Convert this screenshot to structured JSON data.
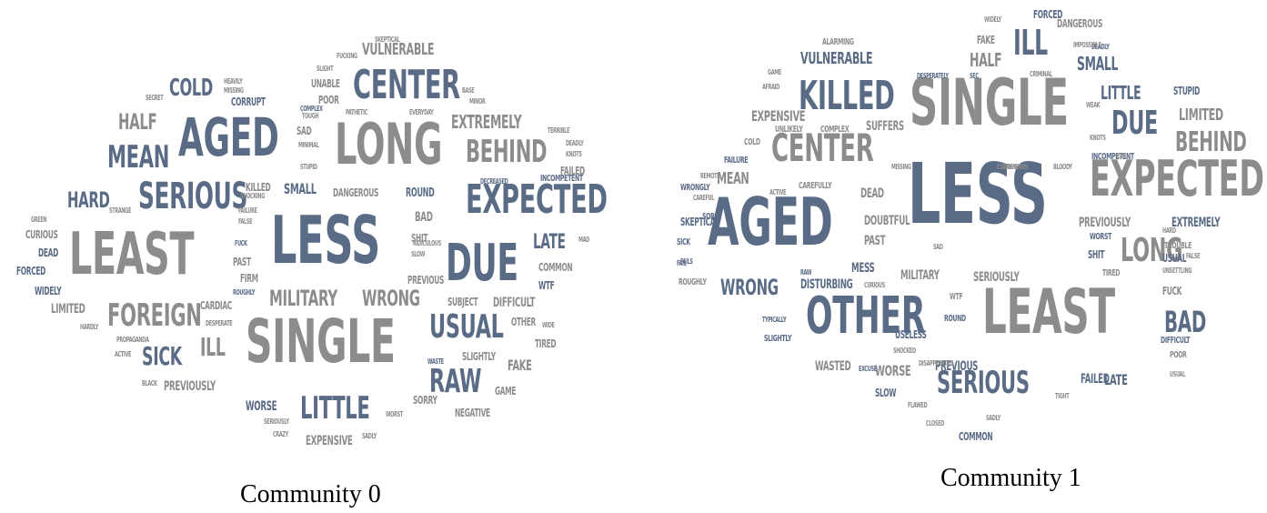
{
  "palette": {
    "gray": "#8c8c8c",
    "blue": "#5a6b86"
  },
  "clouds": [
    {
      "caption": "Community 0",
      "words": [
        {
          "t": "LESS",
          "c": "b"
        },
        {
          "t": "LEAST",
          "c": "g"
        },
        {
          "t": "SINGLE",
          "c": "g"
        },
        {
          "t": "LONG",
          "c": "g"
        },
        {
          "t": "AGED",
          "c": "b"
        },
        {
          "t": "DUE",
          "c": "b"
        },
        {
          "t": "EXPECTED",
          "c": "b"
        },
        {
          "t": "CENTER",
          "c": "b"
        },
        {
          "t": "SERIOUS",
          "c": "b"
        },
        {
          "t": "FOREIGN",
          "c": "g"
        },
        {
          "t": "MEAN",
          "c": "b"
        },
        {
          "t": "BEHIND",
          "c": "g"
        },
        {
          "t": "USUAL",
          "c": "b"
        },
        {
          "t": "RAW",
          "c": "b"
        },
        {
          "t": "LITTLE",
          "c": "b"
        },
        {
          "t": "MILITARY",
          "c": "g"
        },
        {
          "t": "WRONG",
          "c": "g"
        },
        {
          "t": "EXTREMELY",
          "c": "g"
        },
        {
          "t": "COLD",
          "c": "b"
        },
        {
          "t": "HALF",
          "c": "g"
        },
        {
          "t": "HARD",
          "c": "b"
        },
        {
          "t": "SICK",
          "c": "b"
        },
        {
          "t": "ILL",
          "c": "g"
        },
        {
          "t": "LATE",
          "c": "b"
        },
        {
          "t": "VULNERABLE",
          "c": "g"
        },
        {
          "t": "FAKE",
          "c": "g"
        },
        {
          "t": "PREVIOUSLY",
          "c": "g"
        },
        {
          "t": "LIMITED",
          "c": "g"
        },
        {
          "t": "DIFFICULT",
          "c": "g"
        },
        {
          "t": "SMALL",
          "c": "b"
        },
        {
          "t": "ROUND",
          "c": "b"
        },
        {
          "t": "BAD",
          "c": "g"
        },
        {
          "t": "EXPENSIVE",
          "c": "g"
        },
        {
          "t": "WORSE",
          "c": "b"
        },
        {
          "t": "SHIT",
          "c": "g"
        },
        {
          "t": "POOR",
          "c": "g"
        },
        {
          "t": "CORRUPT",
          "c": "b"
        },
        {
          "t": "UNABLE",
          "c": "g"
        },
        {
          "t": "SAD",
          "c": "g"
        },
        {
          "t": "CARDIAC",
          "c": "g"
        },
        {
          "t": "DANGEROUS",
          "c": "g"
        },
        {
          "t": "COMMON",
          "c": "g"
        },
        {
          "t": "PREVIOUS",
          "c": "g"
        },
        {
          "t": "SUBJECT",
          "c": "g"
        },
        {
          "t": "NEGATIVE",
          "c": "g"
        },
        {
          "t": "SLIGHTLY",
          "c": "g"
        },
        {
          "t": "TIRED",
          "c": "g"
        },
        {
          "t": "OTHER",
          "c": "g"
        },
        {
          "t": "SORRY",
          "c": "g"
        },
        {
          "t": "GAME",
          "c": "g"
        },
        {
          "t": "CURIOUS",
          "c": "g"
        },
        {
          "t": "DEAD",
          "c": "b"
        },
        {
          "t": "FORCED",
          "c": "b"
        },
        {
          "t": "WIDELY",
          "c": "b"
        },
        {
          "t": "KILLED",
          "c": "g"
        },
        {
          "t": "FIRM",
          "c": "g"
        },
        {
          "t": "PAST",
          "c": "g"
        },
        {
          "t": "FAILED",
          "c": "g"
        },
        {
          "t": "WTF",
          "c": "b"
        },
        {
          "t": "INCOMPETENT",
          "c": "b"
        },
        {
          "t": "DEADLY",
          "c": "g"
        },
        {
          "t": "KNOTS",
          "c": "g"
        },
        {
          "t": "TERRIBLE",
          "c": "g"
        },
        {
          "t": "WORST",
          "c": "g"
        },
        {
          "t": "SADLY",
          "c": "g"
        },
        {
          "t": "CRAZY",
          "c": "g"
        },
        {
          "t": "SERIOUSLY",
          "c": "g"
        },
        {
          "t": "PATHETIC",
          "c": "g"
        },
        {
          "t": "EVERYDAY",
          "c": "g"
        },
        {
          "t": "COMPLEX",
          "c": "b"
        },
        {
          "t": "TOUGH",
          "c": "g"
        },
        {
          "t": "MINIMAL",
          "c": "g"
        },
        {
          "t": "STUPID",
          "c": "g"
        },
        {
          "t": "FUCK",
          "c": "b"
        },
        {
          "t": "SKEPTICAL",
          "c": "g"
        },
        {
          "t": "SLIGHT",
          "c": "g"
        },
        {
          "t": "FUCKING",
          "c": "g"
        },
        {
          "t": "HEAVILY",
          "c": "g"
        },
        {
          "t": "MISSING",
          "c": "g"
        },
        {
          "t": "SECRET",
          "c": "g"
        },
        {
          "t": "BASE",
          "c": "g"
        },
        {
          "t": "MINOR",
          "c": "g"
        },
        {
          "t": "DECREASED",
          "c": "b"
        },
        {
          "t": "SLOW",
          "c": "g"
        },
        {
          "t": "RIDICULOUS",
          "c": "g"
        },
        {
          "t": "STRANGE",
          "c": "g"
        },
        {
          "t": "SHOCKING",
          "c": "g"
        },
        {
          "t": "FAILURE",
          "c": "g"
        },
        {
          "t": "FALSE",
          "c": "g"
        },
        {
          "t": "GREEN",
          "c": "g"
        },
        {
          "t": "HARDLY",
          "c": "g"
        },
        {
          "t": "PROPAGANDA",
          "c": "g"
        },
        {
          "t": "ACTIVE",
          "c": "g"
        },
        {
          "t": "BLACK",
          "c": "g"
        },
        {
          "t": "DESPERATE",
          "c": "g"
        },
        {
          "t": "ROUGHLY",
          "c": "b"
        },
        {
          "t": "WASTE",
          "c": "b"
        },
        {
          "t": "WIDE",
          "c": "g"
        },
        {
          "t": "MAD",
          "c": "g"
        }
      ]
    },
    {
      "caption": "Community 1",
      "words": [
        {
          "t": "LESS",
          "c": "b"
        },
        {
          "t": "SINGLE",
          "c": "g"
        },
        {
          "t": "AGED",
          "c": "b"
        },
        {
          "t": "LEAST",
          "c": "g"
        },
        {
          "t": "OTHER",
          "c": "b"
        },
        {
          "t": "EXPECTED",
          "c": "g"
        },
        {
          "t": "KILLED",
          "c": "b"
        },
        {
          "t": "CENTER",
          "c": "g"
        },
        {
          "t": "LONG",
          "c": "g"
        },
        {
          "t": "SERIOUS",
          "c": "b"
        },
        {
          "t": "DUE",
          "c": "b"
        },
        {
          "t": "BEHIND",
          "c": "g"
        },
        {
          "t": "ILL",
          "c": "b"
        },
        {
          "t": "BAD",
          "c": "b"
        },
        {
          "t": "WRONG",
          "c": "b"
        },
        {
          "t": "VULNERABLE",
          "c": "b"
        },
        {
          "t": "SMALL",
          "c": "b"
        },
        {
          "t": "LIMITED",
          "c": "g"
        },
        {
          "t": "HALF",
          "c": "g"
        },
        {
          "t": "LITTLE",
          "c": "b"
        },
        {
          "t": "EXTREMELY",
          "c": "b"
        },
        {
          "t": "MEAN",
          "c": "g"
        },
        {
          "t": "MILITARY",
          "c": "g"
        },
        {
          "t": "SERIOUSLY",
          "c": "g"
        },
        {
          "t": "DOUBTFUL",
          "c": "g"
        },
        {
          "t": "DEAD",
          "c": "g"
        },
        {
          "t": "PAST",
          "c": "g"
        },
        {
          "t": "MESS",
          "c": "b"
        },
        {
          "t": "LATE",
          "c": "b"
        },
        {
          "t": "FAILED",
          "c": "b"
        },
        {
          "t": "COMMON",
          "c": "b"
        },
        {
          "t": "WORSE",
          "c": "g"
        },
        {
          "t": "SLOW",
          "c": "b"
        },
        {
          "t": "WASTED",
          "c": "g"
        },
        {
          "t": "DISTURBING",
          "c": "b"
        },
        {
          "t": "RAW",
          "c": "b"
        },
        {
          "t": "CAREFULLY",
          "c": "g"
        },
        {
          "t": "PREVIOUSLY",
          "c": "g"
        },
        {
          "t": "DANGEROUS",
          "c": "g"
        },
        {
          "t": "FAKE",
          "c": "g"
        },
        {
          "t": "FORCED",
          "c": "b"
        },
        {
          "t": "ALARMING",
          "c": "g"
        },
        {
          "t": "EXPENSIVE",
          "c": "g"
        },
        {
          "t": "COLD",
          "c": "g"
        },
        {
          "t": "FAILURE",
          "c": "b"
        },
        {
          "t": "SORRY",
          "c": "b"
        },
        {
          "t": "SKEPTICAL",
          "c": "b"
        },
        {
          "t": "SICK",
          "c": "b"
        },
        {
          "t": "FAILS",
          "c": "b"
        },
        {
          "t": "WRONGLY",
          "c": "b"
        },
        {
          "t": "ROUGHLY",
          "c": "g"
        },
        {
          "t": "COMPLEX",
          "c": "g"
        },
        {
          "t": "UNLIKELY",
          "c": "g"
        },
        {
          "t": "SUFFERS",
          "c": "g"
        },
        {
          "t": "STUPID",
          "c": "b"
        },
        {
          "t": "INCOMPETENT",
          "c": "b"
        },
        {
          "t": "WORST",
          "c": "b"
        },
        {
          "t": "SHIT",
          "c": "b"
        },
        {
          "t": "TIRED",
          "c": "g"
        },
        {
          "t": "FUCK",
          "c": "g"
        },
        {
          "t": "POOR",
          "c": "g"
        },
        {
          "t": "DIFFICULT",
          "c": "b"
        },
        {
          "t": "USUAL",
          "c": "b"
        },
        {
          "t": "TROUBLE",
          "c": "g"
        },
        {
          "t": "UNSETTLING",
          "c": "g"
        },
        {
          "t": "ROUND",
          "c": "b"
        },
        {
          "t": "WTF",
          "c": "g"
        },
        {
          "t": "USELESS",
          "c": "b"
        },
        {
          "t": "PREVIOUS",
          "c": "b"
        },
        {
          "t": "SLIGHTLY",
          "c": "b"
        },
        {
          "t": "TYPICALLY",
          "c": "b"
        },
        {
          "t": "CUTTING",
          "c": "g"
        },
        {
          "t": "MISSING",
          "c": "g"
        },
        {
          "t": "SAD",
          "c": "g"
        },
        {
          "t": "CRIMINAL",
          "c": "g"
        },
        {
          "t": "WEAK",
          "c": "g"
        },
        {
          "t": "KNOTS",
          "c": "g"
        },
        {
          "t": "BLOODY",
          "c": "g"
        },
        {
          "t": "UNKNOWN",
          "c": "g"
        },
        {
          "t": "DEADLY",
          "c": "b"
        },
        {
          "t": "IMPOSSIBLE",
          "c": "g"
        },
        {
          "t": "WIDELY",
          "c": "g"
        },
        {
          "t": "DESPERATELY",
          "c": "b"
        },
        {
          "t": "SEC",
          "c": "b"
        },
        {
          "t": "GAME",
          "c": "g"
        },
        {
          "t": "AFRAID",
          "c": "g"
        },
        {
          "t": "ACTIVE",
          "c": "g"
        },
        {
          "t": "REMOTE",
          "c": "g"
        },
        {
          "t": "CAREFUL",
          "c": "g"
        },
        {
          "t": "FAIL",
          "c": "b"
        },
        {
          "t": "CURIOUS",
          "c": "g"
        },
        {
          "t": "EXCUSE",
          "c": "b"
        },
        {
          "t": "SHOCKED",
          "c": "g"
        },
        {
          "t": "DISAPPOINTED",
          "c": "g"
        },
        {
          "t": "FLAWED",
          "c": "g"
        },
        {
          "t": "CLOSED",
          "c": "g"
        },
        {
          "t": "SADLY",
          "c": "g"
        },
        {
          "t": "TIGHT",
          "c": "g"
        },
        {
          "t": "HARD",
          "c": "g"
        },
        {
          "t": "FALSE",
          "c": "g"
        },
        {
          "t": "EVIL",
          "c": "g"
        },
        {
          "t": "USUAL",
          "c": "g"
        }
      ]
    }
  ]
}
